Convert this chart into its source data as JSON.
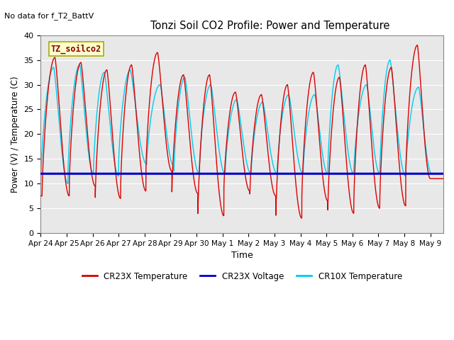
{
  "title": "Tonzi Soil CO2 Profile: Power and Temperature",
  "subtitle": "No data for f_T2_BattV",
  "xlabel": "Time",
  "ylabel": "Power (V) / Temperature (C)",
  "ylim": [
    0,
    40
  ],
  "yticks": [
    0,
    5,
    10,
    15,
    20,
    25,
    30,
    35,
    40
  ],
  "xtick_labels": [
    "Apr 24",
    "Apr 25",
    "Apr 26",
    "Apr 27",
    "Apr 28",
    "Apr 29",
    "Apr 30",
    "May 1",
    "May 2",
    "May 3",
    "May 4",
    "May 5",
    "May 6",
    "May 7",
    "May 8",
    "May 9"
  ],
  "legend_box_text": "TZ_soilco2",
  "legend_box_color": "#ffffcc",
  "legend_box_edge": "#aaaa00",
  "cr23x_temp_color": "#dd0000",
  "cr23x_volt_color": "#0000cc",
  "cr10x_temp_color": "#00ccee",
  "background_color": "#e8e8e8",
  "grid_color": "#ffffff",
  "voltage_value": 12.0,
  "n_days": 15.5,
  "cr23x_peaks": [
    35.5,
    34.5,
    33.0,
    34.0,
    36.5,
    32.0,
    32.0,
    28.5,
    28.0,
    30.0,
    32.5,
    31.5,
    34.0,
    33.5,
    38.0
  ],
  "cr23x_mins": [
    7.5,
    9.5,
    7.0,
    8.5,
    12.5,
    8.0,
    3.5,
    8.5,
    7.5,
    3.0,
    6.5,
    4.0,
    5.0,
    5.5,
    11.0
  ],
  "cr10x_peaks": [
    33.5,
    34.0,
    32.5,
    33.0,
    30.0,
    31.5,
    30.0,
    27.0,
    26.5,
    28.0,
    28.0,
    34.0,
    30.0,
    35.0,
    29.5
  ],
  "cr10x_mins": [
    10.0,
    12.0,
    11.5,
    14.0,
    13.5,
    12.0,
    12.0,
    12.0,
    12.0,
    12.0,
    12.0,
    12.0,
    12.0,
    11.5,
    12.0
  ],
  "cr23x_peak_pos": [
    0.55,
    1.55,
    2.55,
    3.5,
    4.5,
    5.5,
    6.5,
    7.5,
    8.5,
    9.5,
    10.5,
    11.5,
    12.5,
    13.5,
    14.5
  ],
  "cr10x_peak_pos": [
    0.5,
    1.5,
    2.45,
    3.45,
    4.6,
    5.55,
    6.55,
    7.55,
    8.55,
    9.55,
    10.55,
    11.45,
    12.55,
    13.45,
    14.55
  ]
}
